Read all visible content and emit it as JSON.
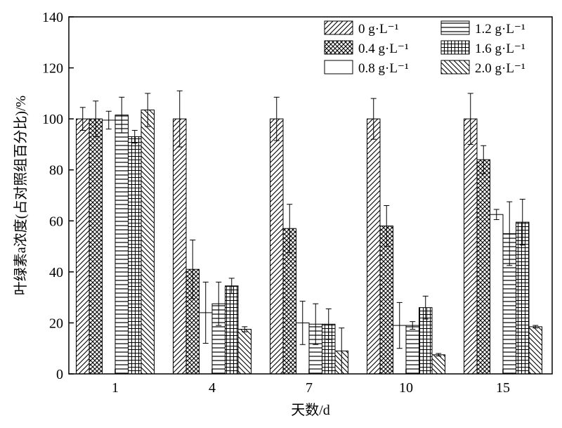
{
  "chart_data": {
    "type": "bar",
    "xlabel": "天数/d",
    "ylabel": "叶绿素a浓度(占对照组百分比)/%",
    "ylim": [
      0,
      140
    ],
    "yticks": [
      0,
      20,
      40,
      60,
      80,
      100,
      120,
      140
    ],
    "categories": [
      "1",
      "4",
      "7",
      "10",
      "15"
    ],
    "legend_position": "top-right",
    "grid": false,
    "series": [
      {
        "name": "0 g·L⁻¹",
        "pattern": "diag-fwd",
        "values": [
          100,
          100,
          100,
          100,
          100
        ],
        "errors": [
          4.5,
          11,
          8.5,
          8,
          10
        ]
      },
      {
        "name": "0.4 g·L⁻¹",
        "pattern": "crosshatch",
        "values": [
          100,
          41,
          57,
          58,
          84
        ],
        "errors": [
          7,
          11.5,
          9.5,
          8,
          5.5
        ]
      },
      {
        "name": "0.8 g·L⁻¹",
        "pattern": "blank",
        "values": [
          99.5,
          24,
          20,
          19,
          62.5
        ],
        "errors": [
          3.5,
          12,
          8.5,
          9,
          2
        ]
      },
      {
        "name": "1.2 g·L⁻¹",
        "pattern": "hlines",
        "values": [
          101.5,
          27.5,
          19.5,
          19,
          55
        ],
        "errors": [
          7,
          8.5,
          8,
          1.5,
          12.5
        ]
      },
      {
        "name": "1.6 g·L⁻¹",
        "pattern": "grid",
        "values": [
          93,
          34.5,
          19.5,
          26,
          59.5
        ],
        "errors": [
          2.5,
          3,
          6,
          4.5,
          9
        ]
      },
      {
        "name": "2.0 g·L⁻¹",
        "pattern": "diag-back",
        "values": [
          103.5,
          17.5,
          9,
          7.5,
          18.5
        ],
        "errors": [
          6.5,
          1,
          9,
          0.5,
          0.5
        ]
      }
    ]
  }
}
